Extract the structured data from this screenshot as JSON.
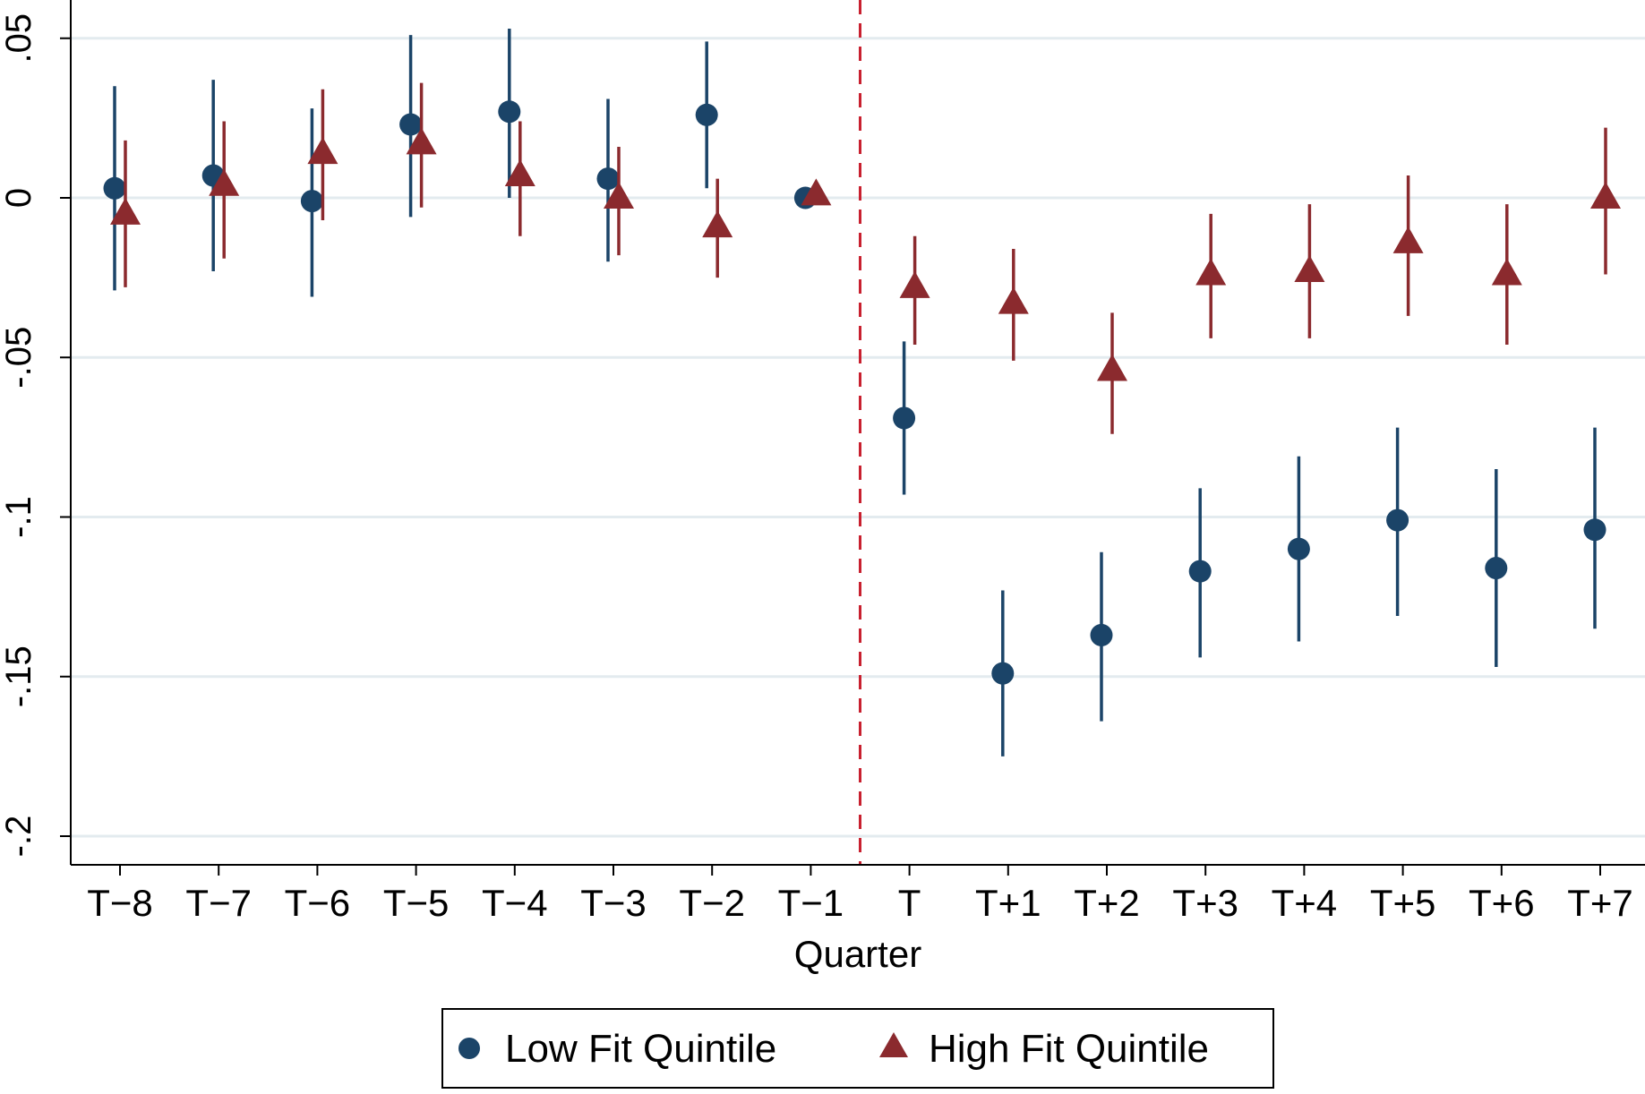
{
  "chart_data": {
    "type": "scatter",
    "subtype": "coefficient-plot-with-confidence-intervals",
    "title": "",
    "xlabel": "Quarter",
    "ylabel": "",
    "categories": [
      "T−8",
      "T−7",
      "T−6",
      "T−5",
      "T−4",
      "T−3",
      "T−2",
      "T−1",
      "T",
      "T+1",
      "T+2",
      "T+3",
      "T+4",
      "T+5",
      "T+6",
      "T+7"
    ],
    "ylim": [
      -0.205,
      0.062
    ],
    "yticks": [
      0.05,
      0,
      -0.05,
      -0.1,
      -0.15,
      -0.2
    ],
    "ytick_labels": [
      ".05",
      "0",
      "-.05",
      "-.1",
      "-.15",
      "-.2"
    ],
    "grid": true,
    "reference_line": {
      "after_category": "T−1",
      "style": "dashed",
      "color": "#c8202f"
    },
    "series": [
      {
        "name": "Low Fit Quintile",
        "marker": "circle",
        "color": "#1b4468",
        "values": [
          0.003,
          0.007,
          -0.001,
          0.023,
          0.027,
          0.006,
          0.026,
          0.0,
          -0.069,
          -0.149,
          -0.137,
          -0.117,
          -0.11,
          -0.101,
          -0.116,
          -0.104
        ],
        "ci_low": [
          -0.029,
          -0.023,
          -0.031,
          -0.006,
          0.0,
          -0.02,
          0.003,
          0.0,
          -0.093,
          -0.175,
          -0.164,
          -0.144,
          -0.139,
          -0.131,
          -0.147,
          -0.135
        ],
        "ci_high": [
          0.035,
          0.037,
          0.028,
          0.051,
          0.053,
          0.031,
          0.049,
          0.0,
          -0.045,
          -0.123,
          -0.111,
          -0.091,
          -0.081,
          -0.072,
          -0.085,
          -0.072
        ]
      },
      {
        "name": "High Fit Quintile",
        "marker": "triangle",
        "color": "#8b2a2e",
        "values": [
          -0.005,
          0.004,
          0.014,
          0.017,
          0.007,
          0.0,
          -0.009,
          0.001,
          -0.028,
          -0.033,
          -0.054,
          -0.024,
          -0.023,
          -0.014,
          -0.024,
          0.0
        ],
        "ci_low": [
          -0.028,
          -0.019,
          -0.007,
          -0.003,
          -0.012,
          -0.018,
          -0.025,
          0.001,
          -0.046,
          -0.051,
          -0.074,
          -0.044,
          -0.044,
          -0.037,
          -0.046,
          -0.024
        ],
        "ci_high": [
          0.018,
          0.024,
          0.034,
          0.036,
          0.024,
          0.016,
          0.006,
          0.001,
          -0.012,
          -0.016,
          -0.036,
          -0.005,
          -0.002,
          0.007,
          -0.002,
          0.022
        ]
      }
    ]
  },
  "legend": {
    "items": [
      {
        "label": "Low Fit Quintile",
        "marker": "circle",
        "color": "#1b4468"
      },
      {
        "label": "High Fit Quintile",
        "marker": "triangle",
        "color": "#8b2a2e"
      }
    ]
  },
  "colors": {
    "grid": "#e3ebef",
    "axis": "#000000",
    "reference_line": "#c8202f"
  }
}
